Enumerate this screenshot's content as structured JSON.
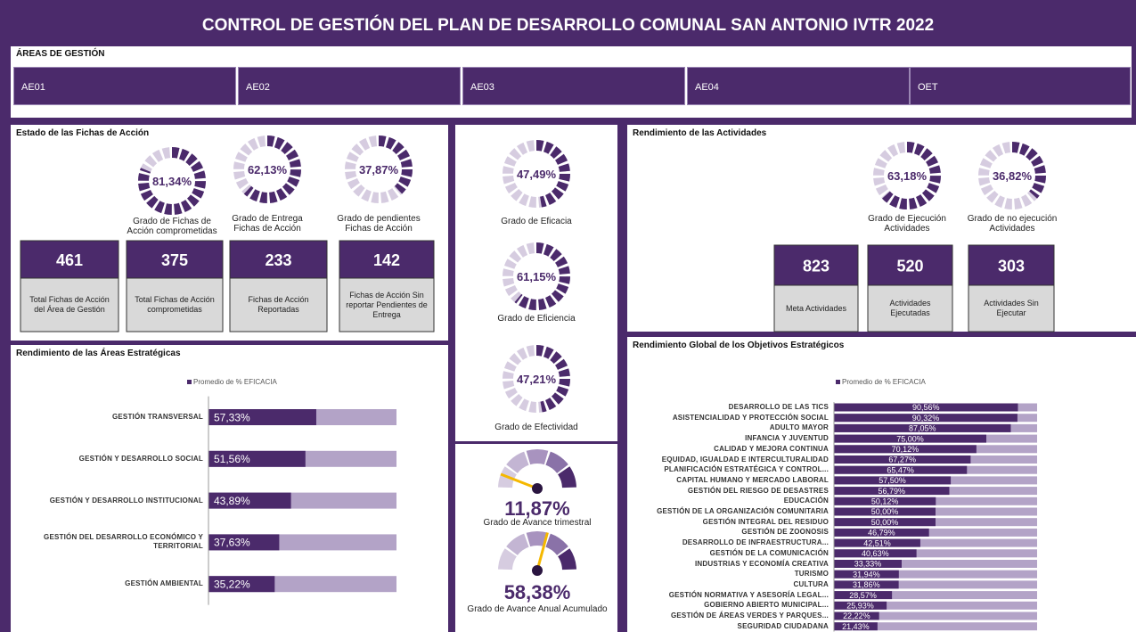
{
  "title": "CONTROL DE GESTIÓN DEL PLAN DE DESARROLLO COMUNAL SAN ANTONIO IVTR 2022",
  "areas_filter": {
    "label": "ÁREAS DE GESTIÓN",
    "options": [
      "AE01",
      "AE02",
      "AE03",
      "AE04",
      "OET"
    ]
  },
  "fichas": {
    "title": "Estado de las Fichas de Acción",
    "gauges": [
      {
        "value": 81.34,
        "label": "81,34%",
        "caption": "Grado de Fichas de Acción comprometidas"
      },
      {
        "value": 62.13,
        "label": "62,13%",
        "caption": "Grado de Entrega Fichas de Acción"
      },
      {
        "value": 37.87,
        "label": "37,87%",
        "caption": "Grado de pendientes Fichas de Acción"
      }
    ],
    "cards": [
      {
        "value": 461,
        "caption": "Total Fichas de Acción del Área de Gestión"
      },
      {
        "value": 375,
        "caption": "Total Fichas de Acción comprometidas"
      },
      {
        "value": 233,
        "caption": "Fichas de Acción Reportadas"
      },
      {
        "value": 142,
        "caption": "Fichas de Acción Sin reportar Pendientes de Entrega"
      }
    ]
  },
  "grados": {
    "gauges": [
      {
        "value": 47.49,
        "label": "47,49%",
        "caption": "Grado de Eficacia"
      },
      {
        "value": 61.15,
        "label": "61,15%",
        "caption": "Grado de Eficiencia"
      },
      {
        "value": 47.21,
        "label": "47,21%",
        "caption": "Grado de Efectividad"
      }
    ]
  },
  "avance": {
    "gauges": [
      {
        "value": 11.87,
        "label": "11,87%",
        "caption": "Grado de Avance trimestral"
      },
      {
        "value": 58.38,
        "label": "58,38%",
        "caption": "Grado de Avance Anual Acumulado"
      }
    ]
  },
  "actividades": {
    "title": "Rendimiento de las Actividades",
    "gauges": [
      {
        "value": 63.18,
        "label": "63,18%",
        "caption": "Grado de Ejecución Actividades"
      },
      {
        "value": 36.82,
        "label": "36,82%",
        "caption": "Grado de no ejecución Actividades"
      }
    ],
    "cards": [
      {
        "value": 823,
        "caption": "Meta Actividades"
      },
      {
        "value": 520,
        "caption": "Actividades Ejecutadas"
      },
      {
        "value": 303,
        "caption": "Actividades Sin Ejecutar"
      }
    ]
  },
  "areas_chart": {
    "type": "bar",
    "title": "Rendimiento de las Áreas Estratégicas",
    "legend": "Promedio de % EFICACIA",
    "color": "#4b2a6b",
    "categories": [
      "GESTIÓN TRANSVERSAL",
      "GESTIÓN Y DESARROLLO SOCIAL",
      "GESTIÓN Y DESARROLLO INSTITUCIONAL",
      "GESTIÓN DEL DESARROLLO ECONÓMICO Y TERRITORIAL",
      "GESTIÓN AMBIENTAL"
    ],
    "values": [
      57.33,
      51.56,
      43.89,
      37.63,
      35.22
    ],
    "value_labels": [
      "57,33%",
      "51,56%",
      "43,89%",
      "37,63%",
      "35,22%"
    ],
    "xlim": [
      0,
      100
    ]
  },
  "objetivos_chart": {
    "type": "bar",
    "title": "Rendimiento Global de los Objetivos Estratégicos",
    "legend": "Promedio de % EFICACIA",
    "color": "#4b2a6b",
    "categories": [
      "DESARROLLO DE LAS TICS",
      "ASISTENCIALIDAD Y PROTECCIÓN SOCIAL",
      "ADULTO MAYOR",
      "INFANCIA Y JUVENTUD",
      "CALIDAD Y MEJORA CONTINUA",
      "EQUIDAD, IGUALDAD E INTERCULTURALIDAD",
      "PLANIFICACIÓN ESTRATÉGICA Y CONTROL...",
      "CAPITAL HUMANO Y MERCADO LABORAL",
      "GESTIÓN DEL RIESGO DE DESASTRES",
      "EDUCACIÓN",
      "GESTIÓN DE LA ORGANIZACIÓN COMUNITARIA",
      "GESTIÓN INTEGRAL DEL RESIDUO",
      "GESTIÓN DE ZOONOSIS",
      "DESARROLLO DE INFRAESTRUCTURA...",
      "GESTIÓN DE LA COMUNICACIÓN",
      "INDUSTRIAS Y ECONOMÍA CREATIVA",
      "TURISMO",
      "CULTURA",
      "GESTIÓN NORMATIVA Y ASESORÍA LEGAL...",
      "GOBIERNO ABIERTO MUNICIPAL...",
      "GESTIÓN DE ÁREAS VERDES Y PARQUES...",
      "SEGURIDAD CIUDADANA"
    ],
    "values": [
      90.56,
      90.32,
      87.05,
      75.0,
      70.12,
      67.27,
      65.47,
      57.5,
      56.79,
      50.12,
      50.0,
      50.0,
      46.79,
      42.51,
      40.63,
      33.33,
      31.94,
      31.86,
      28.57,
      25.93,
      22.22,
      21.43
    ],
    "value_labels": [
      "90,56%",
      "90,32%",
      "87,05%",
      "75,00%",
      "70,12%",
      "67,27%",
      "65,47%",
      "57,50%",
      "56,79%",
      "50,12%",
      "50,00%",
      "50,00%",
      "46,79%",
      "42,51%",
      "40,63%",
      "33,33%",
      "31,94%",
      "31,86%",
      "28,57%",
      "25,93%",
      "22,22%",
      "21,43%"
    ],
    "xlim": [
      0,
      100
    ]
  }
}
